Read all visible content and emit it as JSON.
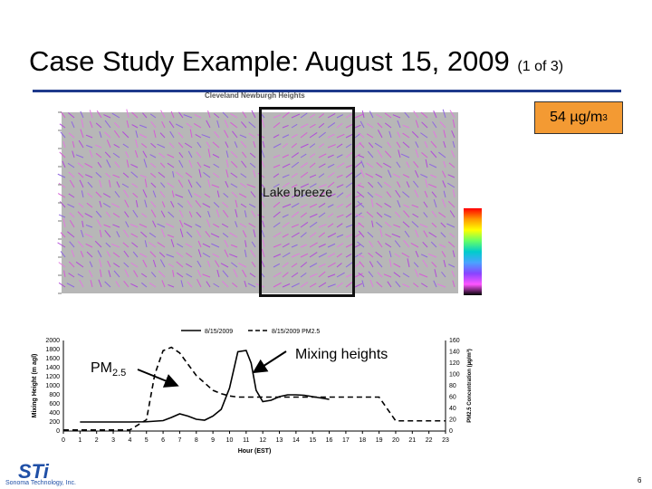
{
  "slide": {
    "title_main": "Case Study Example:  August 15, 2009 ",
    "title_small": "(1 of 3)",
    "page_number": "6",
    "colors": {
      "title_rule": "#1f3a8c",
      "concentration_box": "#f39a33",
      "logo": "#1f4fa6"
    }
  },
  "wind_panel": {
    "title": "Cleveland Newburgh Heights",
    "lake_breeze_label": "Lake breeze",
    "concentration_value": "54 µg/m",
    "concentration_superscript": "3"
  },
  "annotations": {
    "pm_label_main": "PM",
    "pm_label_sub": "2.5",
    "mixing_label": "Mixing heights"
  },
  "logo": {
    "text": "STi",
    "subtext": "Sonoma Technology, Inc."
  },
  "chart_data": {
    "type": "line",
    "legend": [
      "8/15/2009",
      "8/15/2009 PM2.5"
    ],
    "legend_position": "top",
    "xlabel": "Hour (EST)",
    "ylabel_left": "Mixing Height (m agl)",
    "ylabel_right": "PM2.5 Concentration (µg/m³)",
    "x_ticks": [
      0,
      1,
      2,
      3,
      4,
      5,
      6,
      7,
      8,
      9,
      10,
      11,
      12,
      13,
      14,
      15,
      16,
      17,
      18,
      19,
      20,
      21,
      22,
      23
    ],
    "ylim_left": [
      0,
      2000
    ],
    "ylim_right": [
      0,
      160
    ],
    "y_ticks_left": [
      0,
      200,
      400,
      600,
      800,
      1000,
      1200,
      1400,
      1600,
      1800,
      2000
    ],
    "y_ticks_right": [
      0,
      20,
      40,
      60,
      80,
      100,
      120,
      140,
      160
    ],
    "series": [
      {
        "name": "8/15/2009",
        "axis": "left",
        "style": "solid",
        "x": [
          1,
          2,
          3,
          4,
          5,
          6,
          6.5,
          7,
          7.5,
          8,
          8.5,
          9,
          9.5,
          10,
          10.5,
          11,
          11.3,
          11.6,
          12,
          12.5,
          13,
          13.5,
          14,
          14.5,
          15,
          15.5,
          16
        ],
        "values": [
          200,
          200,
          200,
          200,
          205,
          230,
          300,
          380,
          330,
          260,
          240,
          330,
          480,
          950,
          1750,
          1780,
          1500,
          900,
          650,
          680,
          760,
          800,
          800,
          790,
          760,
          730,
          700
        ]
      },
      {
        "name": "8/15/2009 PM2.5",
        "axis": "right",
        "style": "dashed",
        "x": [
          0,
          1,
          2,
          3,
          4,
          5,
          5.5,
          6,
          6.5,
          7,
          7.5,
          8,
          8.5,
          9,
          9.5,
          10,
          10.5,
          11,
          12,
          13,
          14,
          15,
          16,
          17,
          18,
          19,
          20,
          21,
          22,
          23
        ],
        "values": [
          2,
          2,
          2,
          2,
          2,
          20,
          100,
          142,
          148,
          138,
          118,
          98,
          85,
          72,
          66,
          62,
          60,
          60,
          60,
          60,
          60,
          60,
          60,
          60,
          60,
          60,
          18,
          18,
          18,
          18
        ]
      }
    ]
  }
}
